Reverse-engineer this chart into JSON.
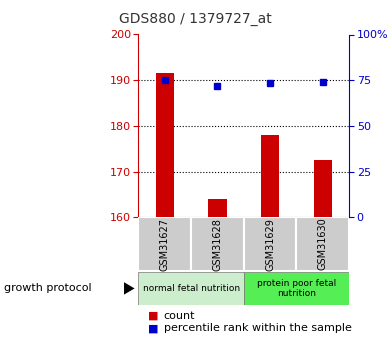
{
  "title": "GDS880 / 1379727_at",
  "samples": [
    "GSM31627",
    "GSM31628",
    "GSM31629",
    "GSM31630"
  ],
  "counts": [
    191.5,
    164.0,
    178.0,
    172.5
  ],
  "percentiles": [
    75.0,
    72.0,
    73.5,
    74.0
  ],
  "ylim_left": [
    160,
    200
  ],
  "ylim_right": [
    0,
    100
  ],
  "yticks_left": [
    160,
    170,
    180,
    190,
    200
  ],
  "yticks_right": [
    0,
    25,
    50,
    75,
    100
  ],
  "yticklabels_right": [
    "0",
    "25",
    "50",
    "75",
    "100%"
  ],
  "bar_color": "#cc0000",
  "dot_color": "#0000cc",
  "groups": [
    {
      "label": "normal fetal nutrition",
      "samples": [
        0,
        1
      ],
      "color": "#cceecc"
    },
    {
      "label": "protein poor fetal\nnutrition",
      "samples": [
        2,
        3
      ],
      "color": "#55ee55"
    }
  ],
  "group_label": "growth protocol",
  "legend_count": "count",
  "legend_percentile": "percentile rank within the sample",
  "title_color": "#333333",
  "left_tick_color": "#cc0000",
  "right_tick_color": "#0000cc",
  "grid_color": "#000000",
  "sample_box_color": "#cccccc",
  "bar_width": 0.35
}
